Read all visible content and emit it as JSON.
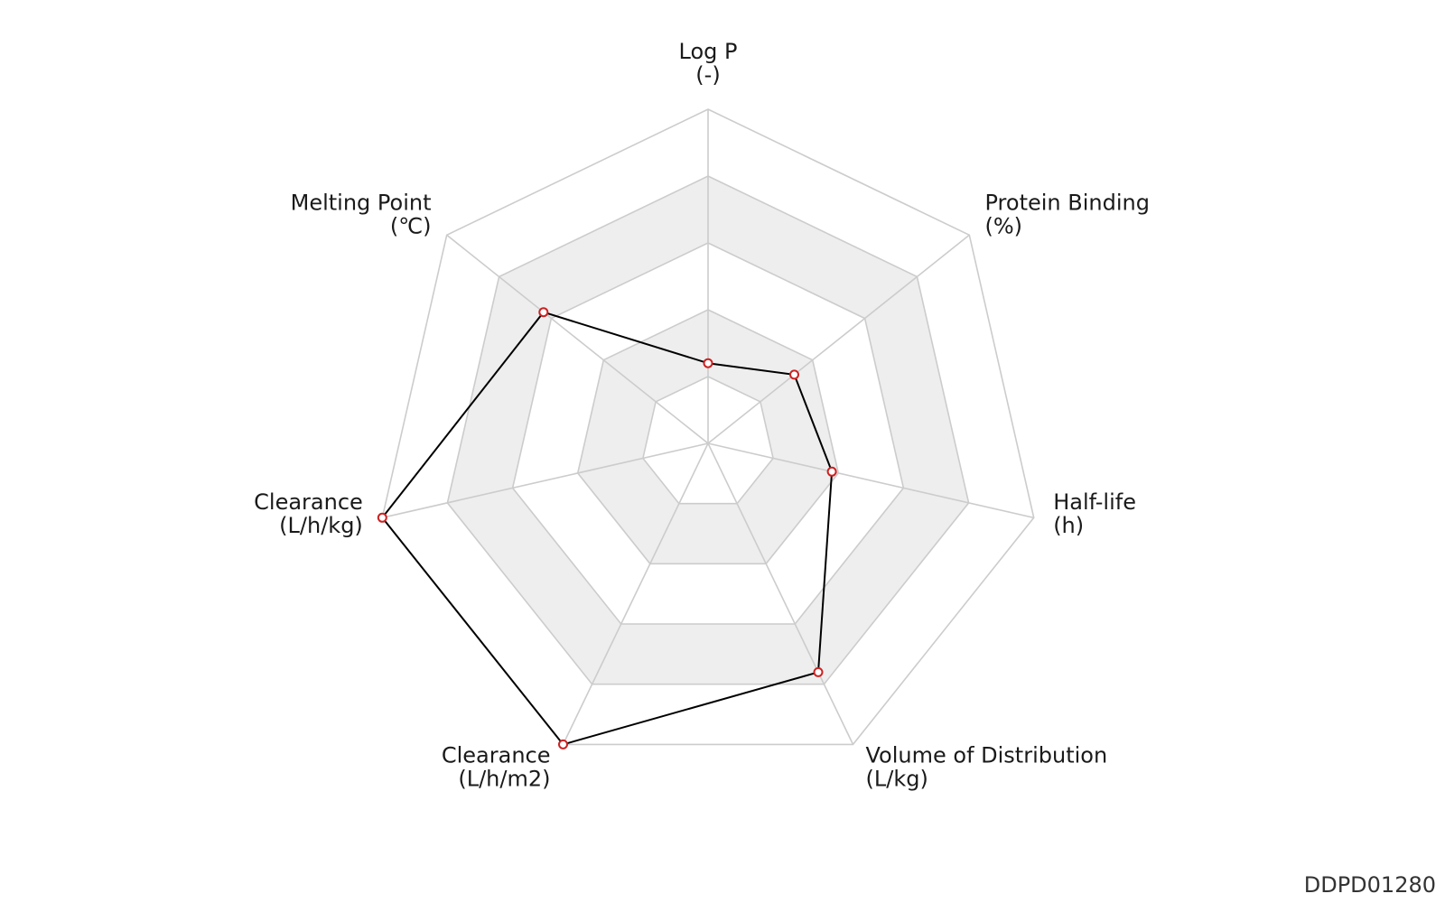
{
  "chart_data": {
    "type": "radar",
    "title": "",
    "axes": [
      {
        "name": "Log P",
        "unit": "(-)"
      },
      {
        "name": "Protein Binding",
        "unit": "(%)"
      },
      {
        "name": "Half-life",
        "unit": "(h)"
      },
      {
        "name": "Volume of Distribution",
        "unit": "(L/kg)"
      },
      {
        "name": "Clearance",
        "unit": "(L/h/m2)"
      },
      {
        "name": "Clearance",
        "unit": "(L/h/kg)"
      },
      {
        "name": "Melting Point",
        "unit": "(℃)"
      }
    ],
    "rings": 5,
    "range": [
      0,
      1
    ],
    "series": [
      {
        "values": [
          0.24,
          0.33,
          0.38,
          0.76,
          1.0,
          1.0,
          0.63
        ]
      }
    ],
    "colors": {
      "line": "#000000",
      "marker_stroke": "#cc2222",
      "marker_fill": "#ffffff",
      "grid": "#cccccc",
      "band": "#eeeeee"
    }
  },
  "watermark": "DDPD01280"
}
